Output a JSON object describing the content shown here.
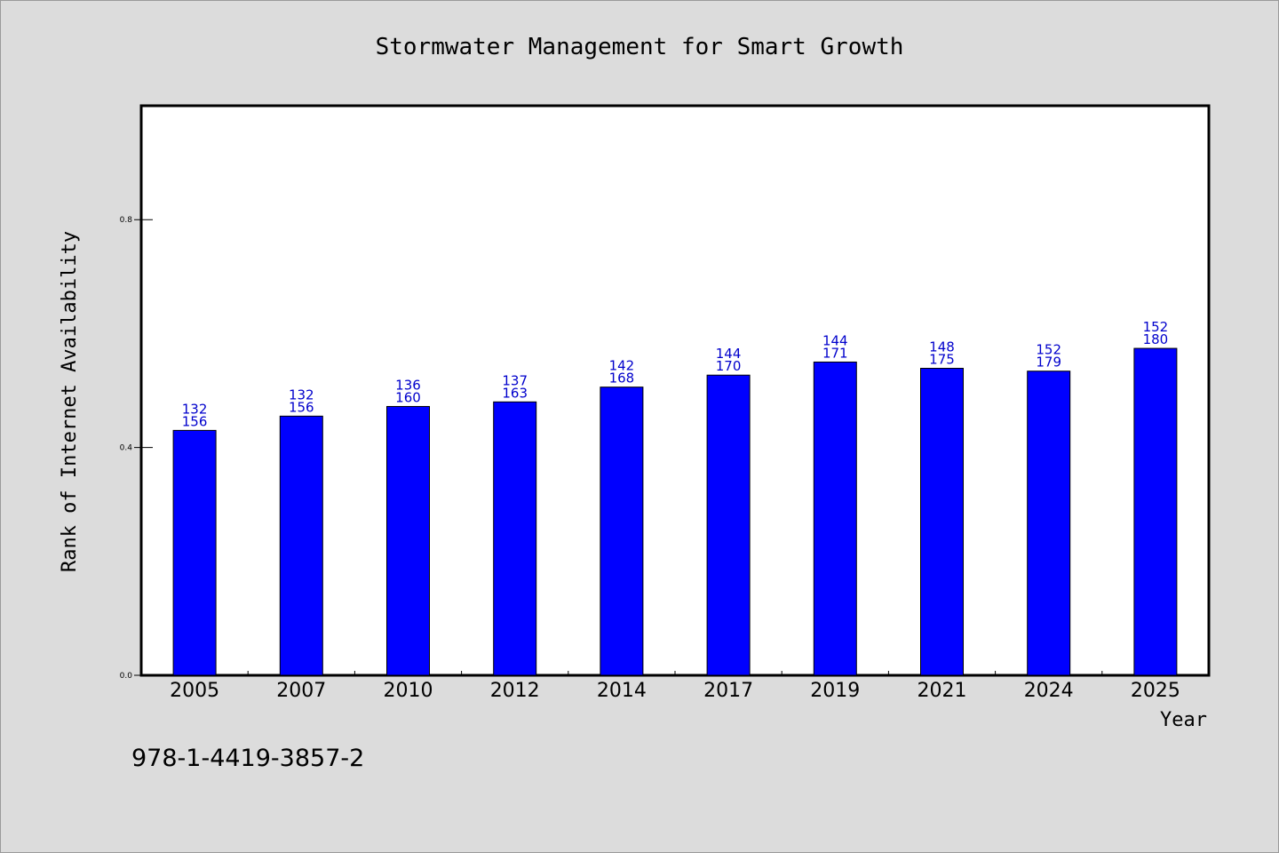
{
  "colors": {
    "background": "#dcdcdc",
    "plot_background": "#ffffff",
    "bar_fill": "#0000ff",
    "bar_stroke": "#000000",
    "data_label": "#0000cc"
  },
  "footer_code": "978-1-4419-3857-2",
  "chart_data": {
    "type": "bar",
    "title": "Stormwater Management for Smart Growth",
    "xlabel": "Year",
    "ylabel": "Rank of Internet Availability",
    "categories": [
      "2005",
      "2007",
      "2010",
      "2012",
      "2014",
      "2017",
      "2019",
      "2021",
      "2024",
      "2025"
    ],
    "values": [
      0.43,
      0.455,
      0.472,
      0.48,
      0.506,
      0.527,
      0.55,
      0.539,
      0.534,
      0.574
    ],
    "label_top": [
      "132",
      "132",
      "136",
      "137",
      "142",
      "144",
      "144",
      "148",
      "152",
      "152"
    ],
    "label_bottom": [
      "156",
      "156",
      "160",
      "163",
      "168",
      "170",
      "171",
      "175",
      "179",
      "180"
    ],
    "ylim": [
      0,
      1.0
    ],
    "yticks": [
      0.0,
      0.4,
      0.8
    ],
    "ytick_labels": [
      "0.0",
      "0.4",
      "0.8"
    ],
    "grid": false,
    "legend": "none"
  }
}
